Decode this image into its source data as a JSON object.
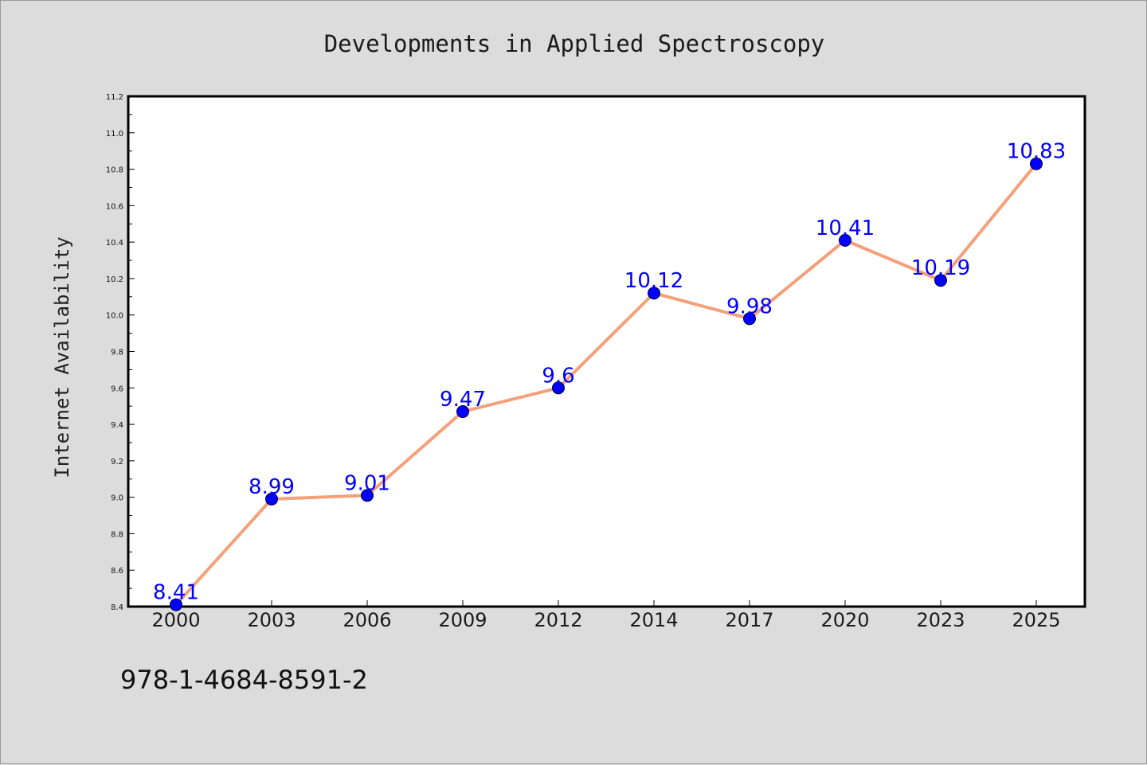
{
  "chart_data": {
    "type": "line",
    "title": "Developments in Applied Spectroscopy",
    "xlabel": "",
    "ylabel": "Internet Availability",
    "categories": [
      "2000",
      "2003",
      "2006",
      "2009",
      "2012",
      "2014",
      "2017",
      "2020",
      "2023",
      "2025"
    ],
    "series": [
      {
        "values": [
          8.41,
          8.99,
          9.01,
          9.47,
          9.6,
          10.12,
          9.98,
          10.41,
          10.19,
          10.83
        ],
        "data_labels": [
          "8.41",
          "8.99",
          "9.01",
          "9.47",
          "9.6",
          "10.12",
          "9.98",
          "10.41",
          "10.19",
          "10.83"
        ],
        "line_color": "#f4a07a",
        "marker_color": "#0000ff"
      }
    ],
    "ylim": [
      8.4,
      11.2
    ],
    "yticks": [
      "8.4",
      "8.6",
      "8.8",
      "9.0",
      "9.2",
      "9.4",
      "9.6",
      "9.8",
      "10.0",
      "10.2",
      "10.4",
      "10.6",
      "10.8",
      "11.0",
      "11.2"
    ],
    "grid": false,
    "legend": "none"
  },
  "footnote": "978-1-4684-8591-2",
  "colors": {
    "background": "#dcdcdc",
    "plot_area": "#ffffff",
    "line": "#f4a07a",
    "marker": "#0000ff",
    "data_label": "#0000ff"
  }
}
